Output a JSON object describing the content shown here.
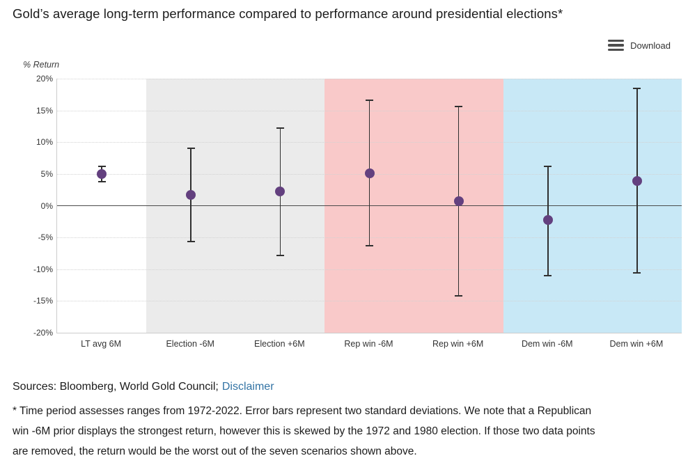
{
  "header": {
    "download_label": "Download"
  },
  "footer": {
    "sources_text": "Sources: Bloomberg, World Gold Council;",
    "disclaimer_label": "Disclaimer",
    "footnote_lines": [
      "* Time period assesses ranges from 1972-2022. Error bars represent two standard deviations. We note that a Republican",
      "win -6M prior displays the strongest return, however this is skewed by the 1972 and 1980 election. If those two data points",
      "are removed, the return would be the worst out of the seven scenarios shown above."
    ]
  },
  "chart_data": {
    "type": "scatter",
    "subtype": "dot-with-error-bars",
    "title": "Gold’s average long-term performance compared to performance around presidential elections*",
    "ylabel": "% Return",
    "xlabel": "",
    "ylim": [
      -20,
      20
    ],
    "ytick_step": 5,
    "grid": "dotted horizontal gridlines, dark zero line",
    "legend_position": "none",
    "yticks": [
      {
        "value": 20,
        "label": "20%"
      },
      {
        "value": 15,
        "label": "15%"
      },
      {
        "value": 10,
        "label": "10%"
      },
      {
        "value": 5,
        "label": "5%"
      },
      {
        "value": 0,
        "label": "0%"
      },
      {
        "value": -5,
        "label": "-5%"
      },
      {
        "value": -10,
        "label": "-10%"
      },
      {
        "value": -15,
        "label": "-15%"
      },
      {
        "value": -20,
        "label": "-20%"
      }
    ],
    "categories": [
      "LT avg 6M",
      "Election -6M",
      "Election +6M",
      "Rep win -6M",
      "Rep win +6M",
      "Dem win -6M",
      "Dem win +6M"
    ],
    "points": [
      {
        "category": "LT avg 6M",
        "value": 5.0,
        "low": 3.8,
        "high": 6.2
      },
      {
        "category": "Election -6M",
        "value": 1.7,
        "low": -5.6,
        "high": 9.0
      },
      {
        "category": "Election +6M",
        "value": 2.2,
        "low": -7.8,
        "high": 12.2
      },
      {
        "category": "Rep win -6M",
        "value": 5.1,
        "low": -6.3,
        "high": 16.6
      },
      {
        "category": "Rep win +6M",
        "value": 0.7,
        "low": -14.2,
        "high": 15.6
      },
      {
        "category": "Dem win -6M",
        "value": -2.3,
        "low": -11.0,
        "high": 6.2
      },
      {
        "category": "Dem win +6M",
        "value": 3.9,
        "low": -10.6,
        "high": 18.5
      }
    ],
    "band_groups": [
      {
        "name": "long-term",
        "start": 0,
        "span": 1,
        "color": "#ffffff"
      },
      {
        "name": "election",
        "start": 1,
        "span": 2,
        "color": "#ebebeb"
      },
      {
        "name": "republican-win",
        "start": 3,
        "span": 2,
        "color": "#f9c9c9"
      },
      {
        "name": "democrat-win",
        "start": 5,
        "span": 2,
        "color": "#c8e8f6"
      }
    ],
    "colors": {
      "marker": "#63407f",
      "error_bar": "#2f2f2f",
      "zero_line": "#4a4a4a",
      "grid_line": "#d2d2d2",
      "axis_line": "#cccccc"
    }
  }
}
